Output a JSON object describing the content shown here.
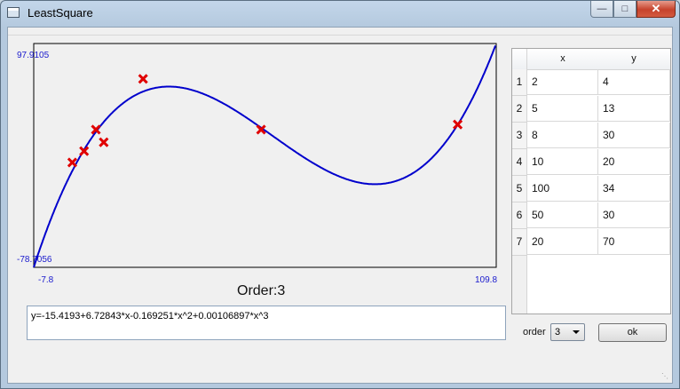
{
  "window": {
    "title": "LeastSquare",
    "accent": "#1a1acd"
  },
  "plot": {
    "y_max_label": "97.9105",
    "y_min_label": "-78.7056",
    "x_min_label": "-7.8",
    "x_max_label": "109.8",
    "order_label": "Order:3",
    "curve_color": "#0000cc",
    "marker_color": "#e00000"
  },
  "chart_data": {
    "type": "scatter",
    "xlim": [
      -7.8,
      109.8
    ],
    "ylim": [
      -78.7056,
      97.9105
    ],
    "points": [
      {
        "x": 2,
        "y": 4
      },
      {
        "x": 5,
        "y": 13
      },
      {
        "x": 8,
        "y": 30
      },
      {
        "x": 10,
        "y": 20
      },
      {
        "x": 100,
        "y": 34
      },
      {
        "x": 50,
        "y": 30
      },
      {
        "x": 20,
        "y": 70
      }
    ],
    "fit": {
      "coefficients": [
        -15.4193,
        6.72843,
        -0.169251,
        0.00106897
      ]
    }
  },
  "formula": "y=-15.4193+6.72843*x-0.169251*x^2+0.00106897*x^3",
  "table": {
    "headers": [
      "x",
      "y"
    ],
    "rows": [
      {
        "n": "1",
        "x": "2",
        "y": "4"
      },
      {
        "n": "2",
        "x": "5",
        "y": "13"
      },
      {
        "n": "3",
        "x": "8",
        "y": "30"
      },
      {
        "n": "4",
        "x": "10",
        "y": "20"
      },
      {
        "n": "5",
        "x": "100",
        "y": "34"
      },
      {
        "n": "6",
        "x": "50",
        "y": "30"
      },
      {
        "n": "7",
        "x": "20",
        "y": "70"
      }
    ]
  },
  "controls": {
    "order_label": "order",
    "order_value": "3",
    "ok_label": "ok"
  }
}
